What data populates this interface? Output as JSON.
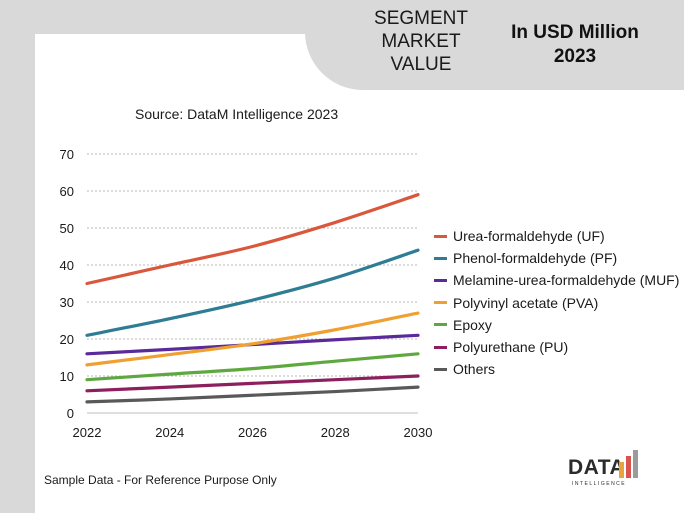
{
  "header": {
    "segment_title_lines": [
      "SEGMENT",
      "MARKET",
      "VALUE"
    ],
    "unit_title_lines": [
      "In USD Million",
      "2023"
    ]
  },
  "source_text": "Source: DataM Intelligence  2023",
  "footnote": "Sample Data - For Reference Purpose Only",
  "logo": {
    "word": "DATA",
    "subtitle": "INTELLIGENCE",
    "bar_colors": [
      "#e8a33d",
      "#d9534f",
      "#9b9b9b"
    ]
  },
  "chart_data": {
    "type": "line",
    "x": [
      2022,
      2024,
      2026,
      2028,
      2030
    ],
    "xticks": [
      "2022",
      "2024",
      "2026",
      "2028",
      "2030"
    ],
    "yticks": [
      "0",
      "10",
      "20",
      "30",
      "40",
      "50",
      "60",
      "70"
    ],
    "ylim": [
      0,
      70
    ],
    "xlim": [
      2022,
      2030
    ],
    "grid": true,
    "legend_position": "right",
    "series": [
      {
        "name": "Urea-formaldehyde (UF)",
        "color": "#d9573b",
        "values": [
          35,
          40,
          45,
          51.5,
          59
        ]
      },
      {
        "name": "Phenol-formaldehyde (PF)",
        "color": "#2e7d94",
        "values": [
          21,
          25.5,
          30.5,
          36.5,
          44
        ]
      },
      {
        "name": "Melamine-urea-formaldehyde (MUF)",
        "color": "#5b2a9a",
        "values": [
          16,
          17.2,
          18.5,
          19.8,
          21
        ]
      },
      {
        "name": "Polyvinyl acetate (PVA)",
        "color": "#f0a030",
        "values": [
          13,
          15.8,
          18.7,
          22.5,
          27
        ]
      },
      {
        "name": "Epoxy",
        "color": "#5ea83f",
        "values": [
          9,
          10.5,
          12,
          14,
          16
        ]
      },
      {
        "name": "Polyurethane (PU)",
        "color": "#8e1f5e",
        "values": [
          6,
          7,
          8,
          9,
          10
        ]
      },
      {
        "name": "Others",
        "color": "#595959",
        "values": [
          3,
          3.8,
          4.8,
          5.8,
          7
        ]
      }
    ]
  }
}
